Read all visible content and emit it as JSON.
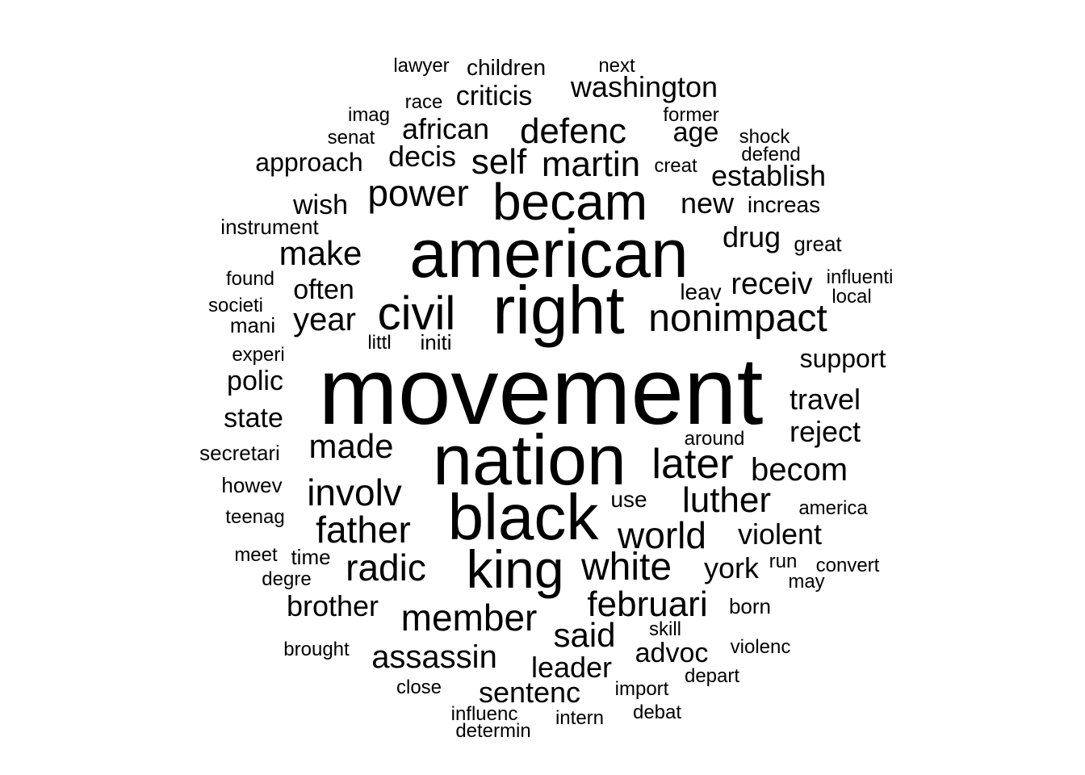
{
  "text_color": "#000000",
  "background_color": "#ffffff",
  "words": [
    "movement",
    "nation",
    "american",
    "right",
    "black",
    "king",
    "becam",
    "civil",
    "nonimpact",
    "later",
    "power",
    "defenc",
    "martin",
    "self",
    "white",
    "februari",
    "world",
    "member",
    "involv",
    "father",
    "luther",
    "made",
    "make",
    "radic",
    "year",
    "washington",
    "becom",
    "said",
    "assassin",
    "sentenc",
    "establish",
    "receiv",
    "travel",
    "reject",
    "african",
    "decis",
    "criticis",
    "york",
    "violent",
    "leader",
    "advoc",
    "new",
    "drug",
    "age",
    "polic",
    "state",
    "brother",
    "support",
    "often",
    "approach",
    "wish",
    "children",
    "lawyer",
    "next",
    "race",
    "imag",
    "former",
    "senat",
    "shock",
    "defend",
    "creat",
    "increas",
    "instrument",
    "great",
    "found",
    "influenti",
    "local",
    "leav",
    "societi",
    "mani",
    "littl",
    "initi",
    "experi",
    "around",
    "secretari",
    "howev",
    "use",
    "america",
    "teenag",
    "meet",
    "time",
    "run",
    "convert",
    "degre",
    "may",
    "born",
    "skill",
    "brought",
    "violenc",
    "depart",
    "close",
    "import",
    "influenc",
    "intern",
    "debat",
    "determin"
  ]
}
